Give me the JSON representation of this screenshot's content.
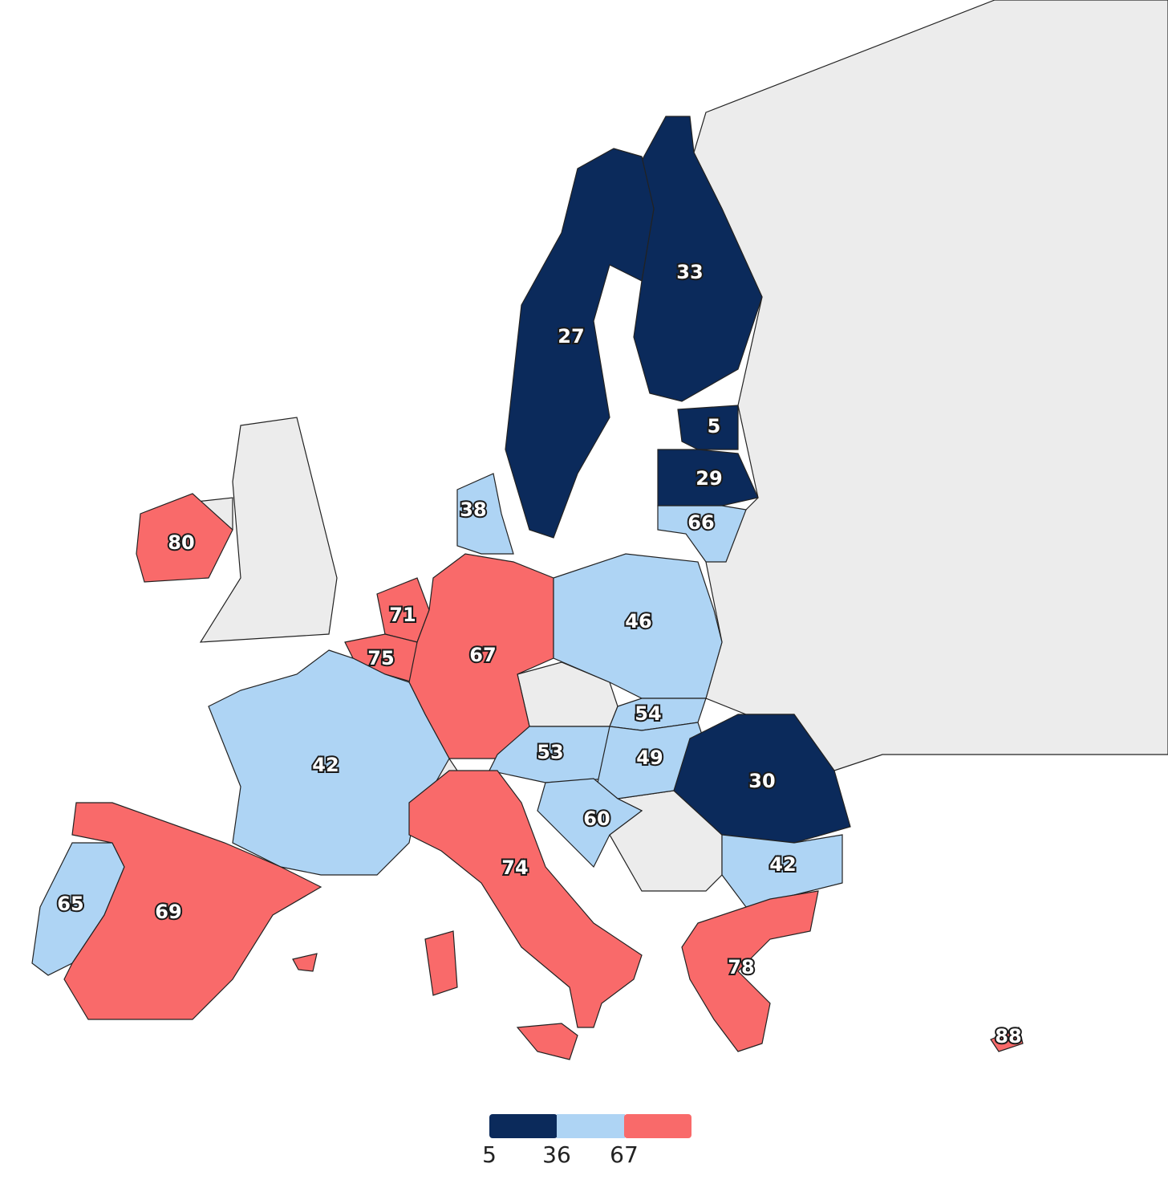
{
  "map": {
    "legend": {
      "bins": [
        {
          "value": 5,
          "color": "#0b2a5b"
        },
        {
          "value": 36,
          "color": "#aed4f4"
        },
        {
          "value": 67,
          "color": "#f96a6a"
        }
      ]
    },
    "regions": [
      {
        "value": 33
      },
      {
        "value": 27
      },
      {
        "value": 5
      },
      {
        "value": 29
      },
      {
        "value": 66
      },
      {
        "value": 38
      },
      {
        "value": 80
      },
      {
        "value": 71
      },
      {
        "value": 75
      },
      {
        "value": 67
      },
      {
        "value": 46
      },
      {
        "value": 54
      },
      {
        "value": 53
      },
      {
        "value": 49
      },
      {
        "value": 30
      },
      {
        "value": 42
      },
      {
        "value": 60
      },
      {
        "value": 42
      },
      {
        "value": 65
      },
      {
        "value": 69
      },
      {
        "value": 74
      },
      {
        "value": 78
      },
      {
        "value": 88
      }
    ]
  }
}
